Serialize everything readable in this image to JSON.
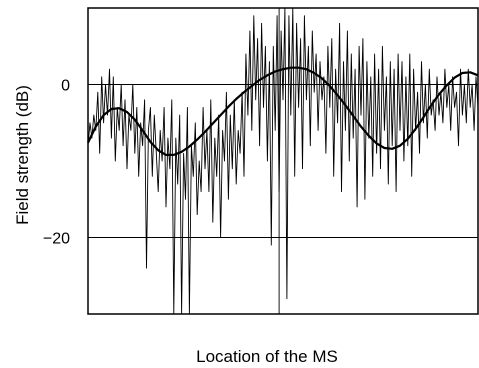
{
  "chart_data": {
    "type": "line",
    "title": "",
    "xlabel": "Location of the MS",
    "ylabel": "Field strength (dB)",
    "ylim": [
      -30,
      10
    ],
    "y_ticks": [
      0,
      -20
    ],
    "y_tick_labels": [
      "0",
      "−20"
    ],
    "x_ticks": [],
    "xlim": [
      0,
      10
    ],
    "x_gridlines": [
      0,
      4.9,
      10
    ],
    "grid": true,
    "series": [
      {
        "style": "thin",
        "x": [
          0.0,
          0.05,
          0.1,
          0.15,
          0.2,
          0.25,
          0.3,
          0.35,
          0.4,
          0.45,
          0.5,
          0.55,
          0.6,
          0.65,
          0.7,
          0.75,
          0.8,
          0.85,
          0.9,
          0.95,
          1.0,
          1.05,
          1.1,
          1.15,
          1.2,
          1.25,
          1.3,
          1.35,
          1.4,
          1.45,
          1.5,
          1.55,
          1.6,
          1.65,
          1.7,
          1.75,
          1.8,
          1.85,
          1.9,
          1.95,
          2.0,
          2.05,
          2.1,
          2.15,
          2.2,
          2.25,
          2.3,
          2.35,
          2.4,
          2.45,
          2.5,
          2.55,
          2.6,
          2.65,
          2.7,
          2.75,
          2.8,
          2.85,
          2.9,
          2.95,
          3.0,
          3.05,
          3.1,
          3.15,
          3.2,
          3.25,
          3.3,
          3.35,
          3.4,
          3.45,
          3.5,
          3.55,
          3.6,
          3.65,
          3.7,
          3.75,
          3.8,
          3.85,
          3.9,
          3.95,
          4.0,
          4.05,
          4.1,
          4.15,
          4.2,
          4.25,
          4.3,
          4.35,
          4.4,
          4.45,
          4.5,
          4.55,
          4.6,
          4.65,
          4.7,
          4.75,
          4.8,
          4.85,
          4.9,
          4.95,
          5.0,
          5.05,
          5.1,
          5.15,
          5.2,
          5.25,
          5.3,
          5.35,
          5.4,
          5.45,
          5.5,
          5.55,
          5.6,
          5.65,
          5.7,
          5.75,
          5.8,
          5.85,
          5.9,
          5.95,
          6.0,
          6.05,
          6.1,
          6.15,
          6.2,
          6.25,
          6.3,
          6.35,
          6.4,
          6.45,
          6.5,
          6.55,
          6.6,
          6.65,
          6.7,
          6.75,
          6.8,
          6.85,
          6.9,
          6.95,
          7.0,
          7.05,
          7.1,
          7.15,
          7.2,
          7.25,
          7.3,
          7.35,
          7.4,
          7.45,
          7.5,
          7.55,
          7.6,
          7.65,
          7.7,
          7.75,
          7.8,
          7.85,
          7.9,
          7.95,
          8.0,
          8.05,
          8.1,
          8.15,
          8.2,
          8.25,
          8.3,
          8.35,
          8.4,
          8.45,
          8.5,
          8.55,
          8.6,
          8.65,
          8.7,
          8.75,
          8.8,
          8.85,
          8.9,
          8.95,
          9.0,
          9.05,
          9.1,
          9.15,
          9.2,
          9.25,
          9.3,
          9.35,
          9.4,
          9.45,
          9.5,
          9.55,
          9.6,
          9.65,
          9.7,
          9.75,
          9.8,
          9.85,
          9.9,
          9.95,
          10.0
        ],
        "y": [
          -8,
          -5,
          -7,
          -4,
          -6,
          -1,
          -9,
          1,
          -5,
          0,
          -4,
          2,
          -7,
          1,
          -10,
          -3,
          -6,
          0,
          -8,
          -2,
          -11,
          -4,
          -6,
          0,
          -9,
          -3,
          -12,
          -5,
          -8,
          -2,
          -24,
          -6,
          -3,
          -12,
          -4,
          -9,
          -14,
          -6,
          -10,
          -3,
          -16,
          -7,
          -11,
          -2,
          -30,
          -7,
          -13,
          -4,
          -30,
          -9,
          -15,
          -3,
          -30,
          -8,
          -12,
          -5,
          -17,
          -10,
          -14,
          -3,
          -11,
          -6,
          -14,
          -2,
          -18,
          -7,
          -12,
          -4,
          -20,
          -6,
          -10,
          -1,
          -15,
          -4,
          -11,
          -2,
          -13,
          -6,
          -9,
          -1,
          -12,
          4,
          -4,
          7,
          -6,
          9,
          -2,
          6,
          -8,
          8,
          -3,
          5,
          -10,
          3,
          -21,
          5,
          -6,
          9,
          -14,
          7,
          -2,
          10,
          -28,
          9,
          -4,
          10,
          -12,
          8,
          -3,
          6,
          -11,
          9,
          -2,
          5,
          -8,
          7,
          -1,
          4,
          -6,
          3,
          -2,
          1,
          -9,
          5,
          -3,
          6,
          -12,
          2,
          -5,
          8,
          -14,
          3,
          -6,
          7,
          -10,
          4,
          -7,
          2,
          -16,
          5,
          -4,
          6,
          -15,
          3,
          -7,
          1,
          -12,
          4,
          -9,
          2,
          -11,
          5,
          -6,
          1,
          -13,
          3,
          -8,
          2,
          -14,
          4,
          -6,
          3,
          -10,
          1,
          -8,
          4,
          -12,
          2,
          -6,
          -1,
          -9,
          3,
          -5,
          0,
          -7,
          2,
          -4,
          -2,
          -6,
          1,
          -4,
          -1,
          -5,
          2,
          -3,
          0,
          -6,
          1,
          -3,
          -1,
          -8,
          2,
          -4,
          0,
          -5,
          2,
          -3,
          0,
          -6,
          1,
          -3
        ]
      },
      {
        "style": "thick",
        "x": [
          0.0,
          0.2,
          0.4,
          0.6,
          0.8,
          1.0,
          1.2,
          1.4,
          1.6,
          1.8,
          2.0,
          2.2,
          2.4,
          2.6,
          2.8,
          3.0,
          3.2,
          3.4,
          3.6,
          3.8,
          4.0,
          4.2,
          4.4,
          4.6,
          4.8,
          5.0,
          5.2,
          5.4,
          5.6,
          5.8,
          6.0,
          6.2,
          6.4,
          6.6,
          6.8,
          7.0,
          7.2,
          7.4,
          7.6,
          7.8,
          8.0,
          8.2,
          8.4,
          8.6,
          8.8,
          9.0,
          9.2,
          9.4,
          9.6,
          9.8,
          10.0
        ],
        "y": [
          -7.6,
          -5.5,
          -4.0,
          -3.2,
          -3.1,
          -3.6,
          -4.6,
          -6.0,
          -7.5,
          -8.6,
          -9.2,
          -9.2,
          -8.8,
          -8.1,
          -7.2,
          -6.2,
          -5.1,
          -4.0,
          -2.9,
          -1.9,
          -1.0,
          -0.2,
          0.6,
          1.2,
          1.7,
          2.0,
          2.2,
          2.2,
          2.0,
          1.5,
          0.8,
          -0.2,
          -1.4,
          -2.7,
          -4.1,
          -5.5,
          -6.7,
          -7.7,
          -8.3,
          -8.4,
          -8.0,
          -7.1,
          -5.8,
          -4.3,
          -2.7,
          -1.3,
          -0.1,
          0.9,
          1.5,
          1.6,
          1.2
        ]
      }
    ]
  }
}
